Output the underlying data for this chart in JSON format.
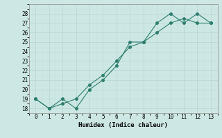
{
  "x": [
    0,
    1,
    2,
    3,
    4,
    5,
    6,
    7,
    8,
    9,
    10,
    11,
    12,
    13
  ],
  "line1": [
    19,
    18,
    19,
    18,
    20,
    21,
    22.5,
    25,
    25,
    27,
    28,
    27,
    28,
    27
  ],
  "line2": [
    19,
    18,
    18.5,
    19,
    20.5,
    21.5,
    23,
    24.5,
    25,
    26,
    27,
    27.5,
    27,
    27
  ],
  "line_color": "#2d7d6e",
  "bg_color": "#cde8e4",
  "grid_major_color": "#b8d8d4",
  "grid_minor_color": "#c8e2de",
  "xlabel": "Humidex (Indice chaleur)",
  "ylim": [
    17.5,
    29.0
  ],
  "xlim": [
    -0.5,
    13.5
  ],
  "yticks": [
    18,
    19,
    20,
    21,
    22,
    23,
    24,
    25,
    26,
    27,
    28
  ],
  "xticks": [
    0,
    1,
    2,
    3,
    4,
    5,
    6,
    7,
    8,
    9,
    10,
    11,
    12,
    13
  ],
  "font_family": "monospace",
  "tick_fontsize": 5.5,
  "xlabel_fontsize": 6.5
}
